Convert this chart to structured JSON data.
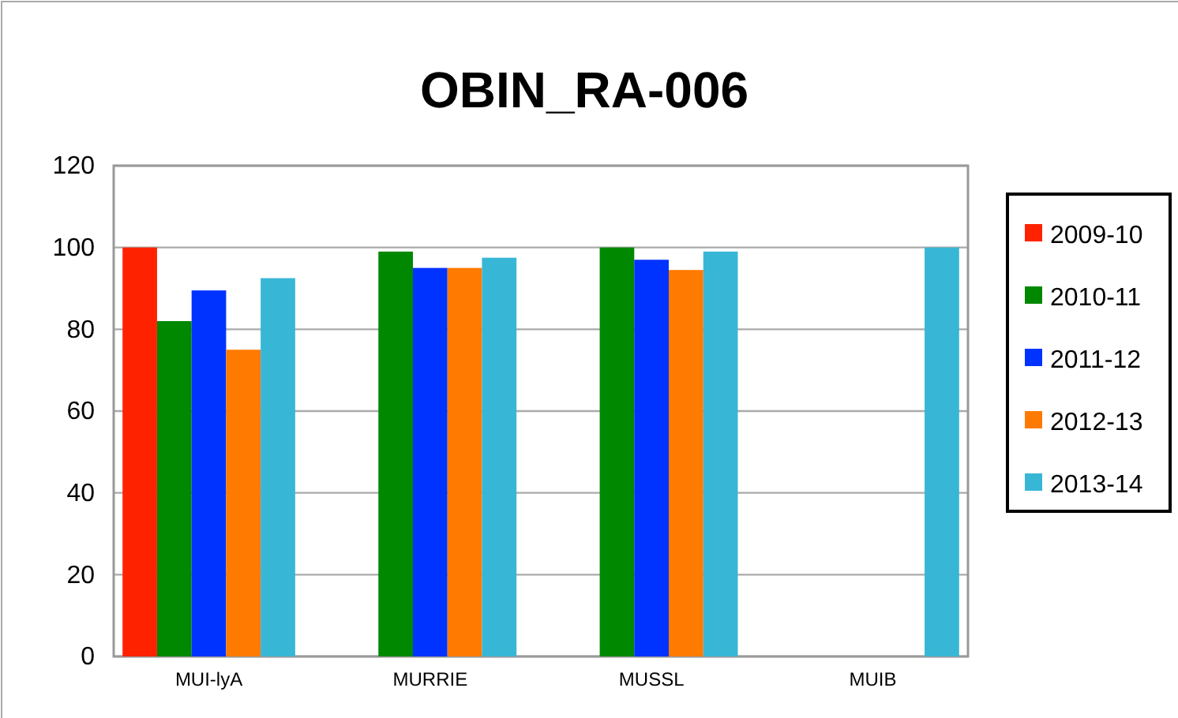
{
  "chart_data": {
    "type": "bar",
    "title": "OBIN_RA-006",
    "categories": [
      "MUI-lyA",
      "MURRIE",
      "MUSSL",
      "MUIB"
    ],
    "series": [
      {
        "name": "2009-10",
        "color": "#ff2200",
        "values": [
          100,
          null,
          null,
          null
        ]
      },
      {
        "name": "2010-11",
        "color": "#008800",
        "values": [
          82,
          99,
          100,
          null
        ]
      },
      {
        "name": "2011-12",
        "color": "#0033ff",
        "values": [
          89.5,
          95,
          97,
          null
        ]
      },
      {
        "name": "2012-13",
        "color": "#ff7a00",
        "values": [
          75,
          95,
          94.5,
          null
        ]
      },
      {
        "name": "2013-14",
        "color": "#38b6d6",
        "values": [
          92.5,
          97.5,
          99,
          100
        ]
      }
    ],
    "ylim": [
      0,
      120
    ],
    "yticks": [
      0,
      20,
      40,
      60,
      80,
      100,
      120
    ],
    "grid": "y",
    "legend": "right"
  }
}
